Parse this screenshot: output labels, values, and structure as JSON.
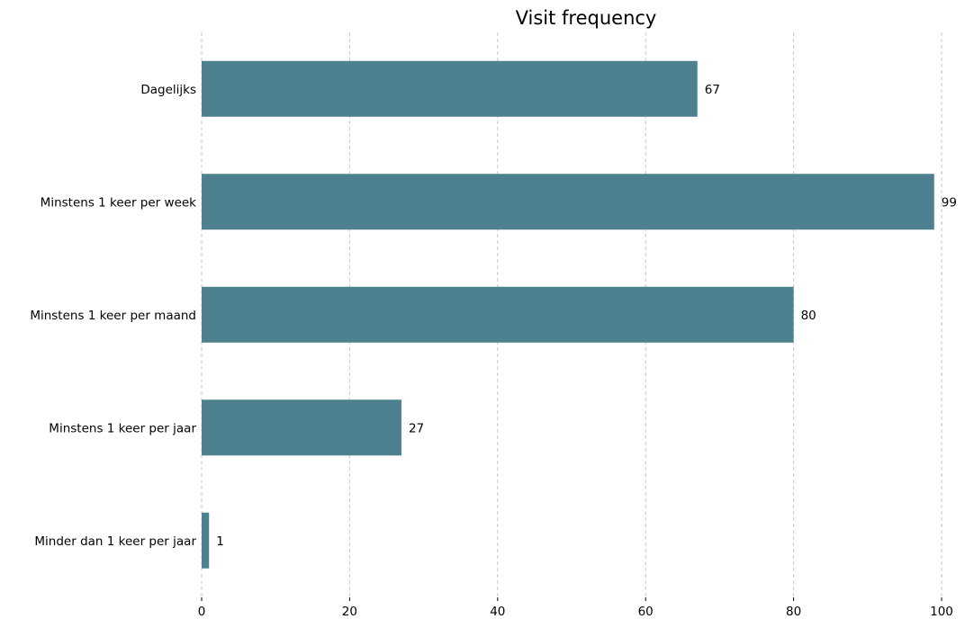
{
  "chart_data": {
    "type": "bar",
    "orientation": "horizontal",
    "title": "Visit frequency",
    "xlabel": "",
    "ylabel": "",
    "categories": [
      "Dagelijks",
      "Minstens 1 keer per week",
      "Minstens 1 keer per maand",
      "Minstens 1 keer per jaar",
      "Minder dan 1 keer per jaar"
    ],
    "values": [
      67,
      99,
      80,
      27,
      1
    ],
    "data_labels": [
      "67",
      "99",
      "80",
      "27",
      "1"
    ],
    "xlim": [
      0,
      100
    ],
    "x_ticks": [
      0,
      20,
      40,
      60,
      80,
      100
    ],
    "x_tick_labels": [
      "0",
      "20",
      "40",
      "60",
      "80",
      "100"
    ],
    "grid": "vertical dashed",
    "legend": "none",
    "bar_color": "#4d8190",
    "grid_color": "#c8c8c8"
  }
}
